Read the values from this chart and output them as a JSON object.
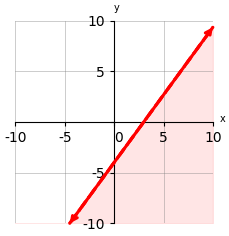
{
  "xlim": [
    -10,
    10
  ],
  "ylim": [
    -10,
    10
  ],
  "xticks": [
    -10,
    -5,
    0,
    5,
    10
  ],
  "yticks": [
    -10,
    -5,
    0,
    5,
    10
  ],
  "xlabel": "x",
  "ylabel": "y",
  "line_color": "red",
  "shade_color": "#ffcccc",
  "shade_alpha": 0.5,
  "line_style": "--",
  "line_width": 2.2,
  "title": "",
  "a": 4,
  "b": -3,
  "c": 12
}
